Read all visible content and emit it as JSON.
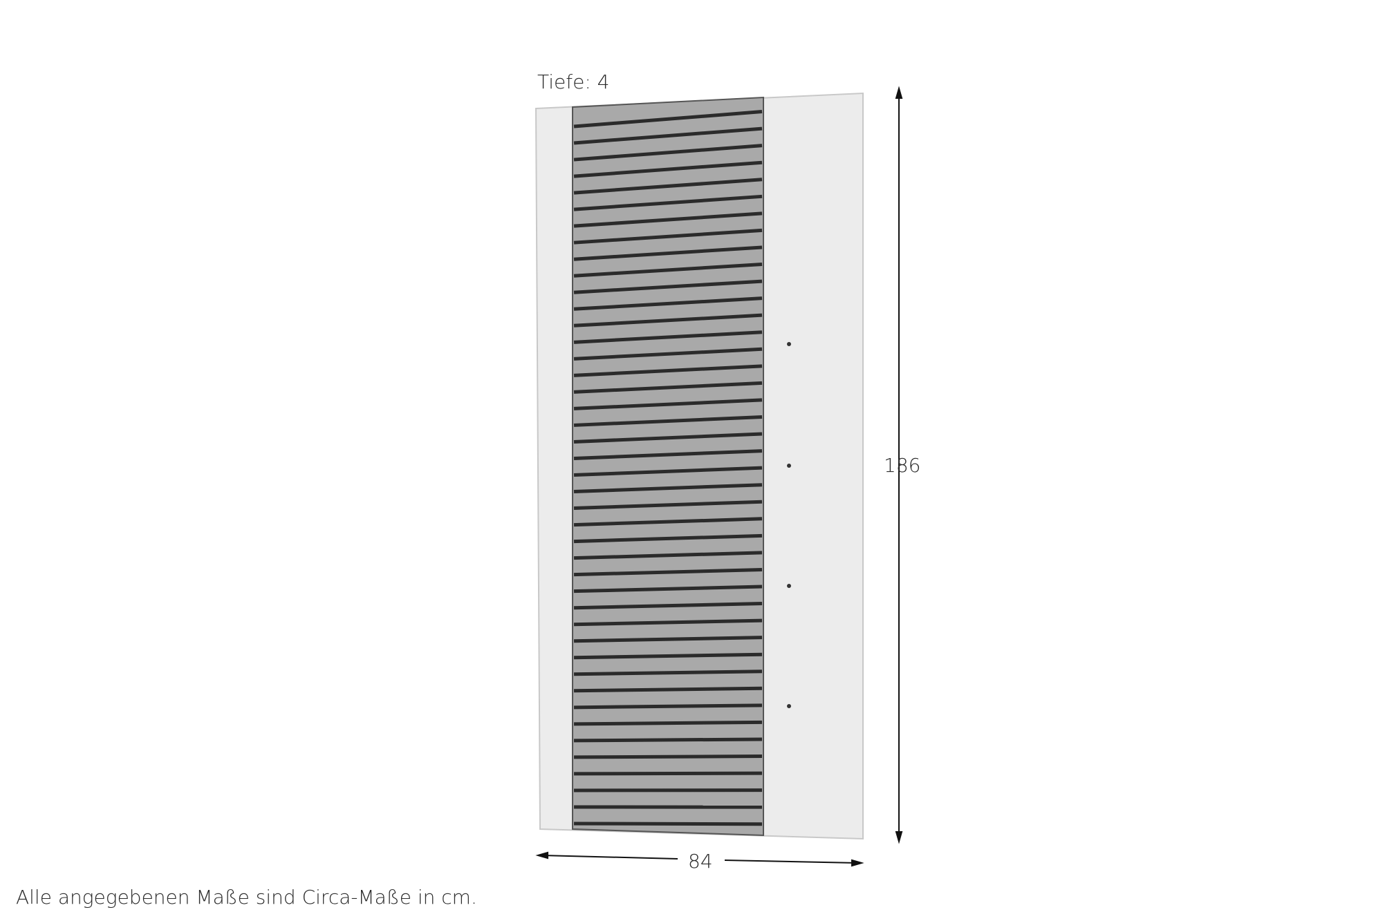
{
  "labels": {
    "depth": "Tiefe: 4",
    "height": "186",
    "width": "84",
    "footnote": "Alle angegebenen Maße sind Circa-Maße in cm."
  },
  "product": {
    "panel_color": "#ececec",
    "slat_panel_color": "#a9a9a9",
    "groove_color": "#2b2b2b",
    "hook_count": 4
  }
}
